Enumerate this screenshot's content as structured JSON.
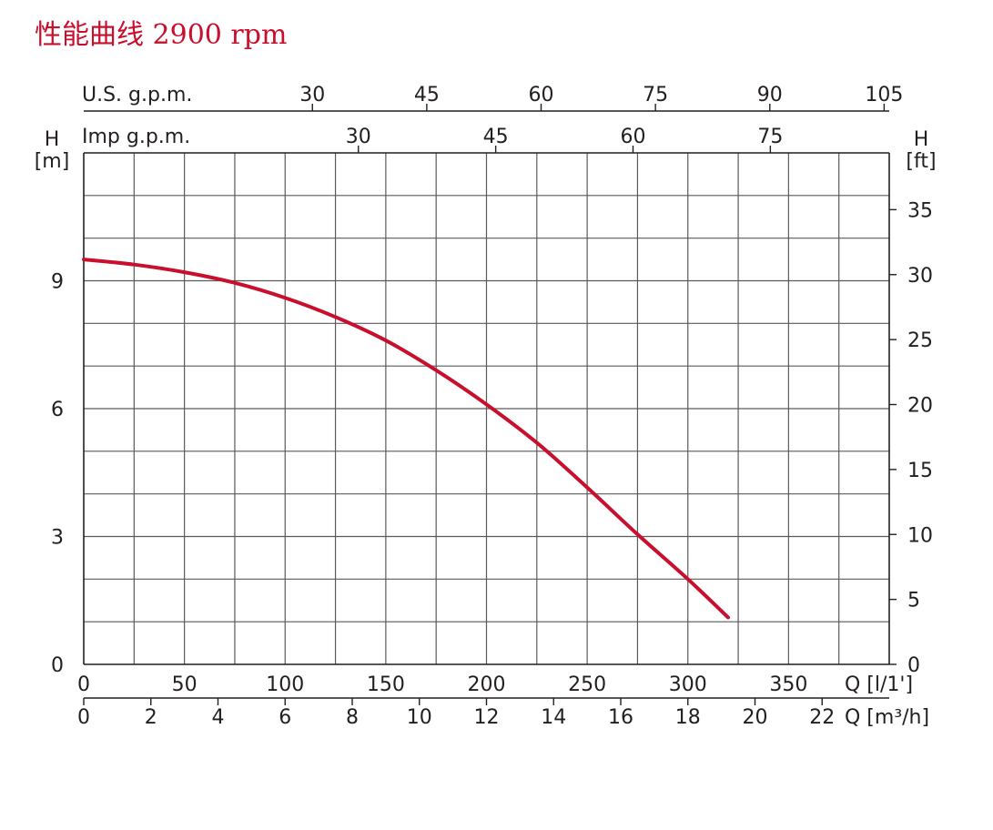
{
  "chart_data": {
    "type": "line",
    "title": "性能曲线 2900 rpm",
    "y_left": {
      "label_top": "H",
      "label_unit": "[m]",
      "ticks": [
        "9",
        "6",
        "3",
        "0"
      ],
      "ylim": [
        0,
        12
      ]
    },
    "y_right": {
      "label_top": "H",
      "label_unit": "[ft]",
      "ticks": [
        "35",
        "30",
        "25",
        "20",
        "15",
        "10",
        "5",
        "0"
      ]
    },
    "x_bottom_lpm": {
      "label": "Q [l/1']",
      "ticks": [
        "0",
        "50",
        "100",
        "150",
        "200",
        "250",
        "300",
        "350"
      ],
      "xlim": [
        0,
        400
      ]
    },
    "x_bottom_m3h": {
      "label": "Q [m³/h]",
      "ticks": [
        "0",
        "2",
        "4",
        "6",
        "8",
        "10",
        "12",
        "14",
        "16",
        "18",
        "20",
        "22"
      ]
    },
    "x_top_us": {
      "label": "U.S.  g.p.m.",
      "ticks": [
        "30",
        "45",
        "60",
        "75",
        "90",
        "105"
      ]
    },
    "x_top_imp": {
      "label": "Imp  g.p.m.",
      "ticks": [
        "30",
        "45",
        "60",
        "75"
      ]
    },
    "grid": true,
    "series": [
      {
        "color": "#c8102e",
        "x": [
          0,
          25,
          50,
          75,
          100,
          125,
          150,
          175,
          200,
          225,
          250,
          275,
          300,
          320
        ],
        "y": [
          9.5,
          9.38,
          9.2,
          8.95,
          8.6,
          8.15,
          7.6,
          6.9,
          6.1,
          5.2,
          4.15,
          3.05,
          2.0,
          1.1
        ]
      }
    ]
  }
}
